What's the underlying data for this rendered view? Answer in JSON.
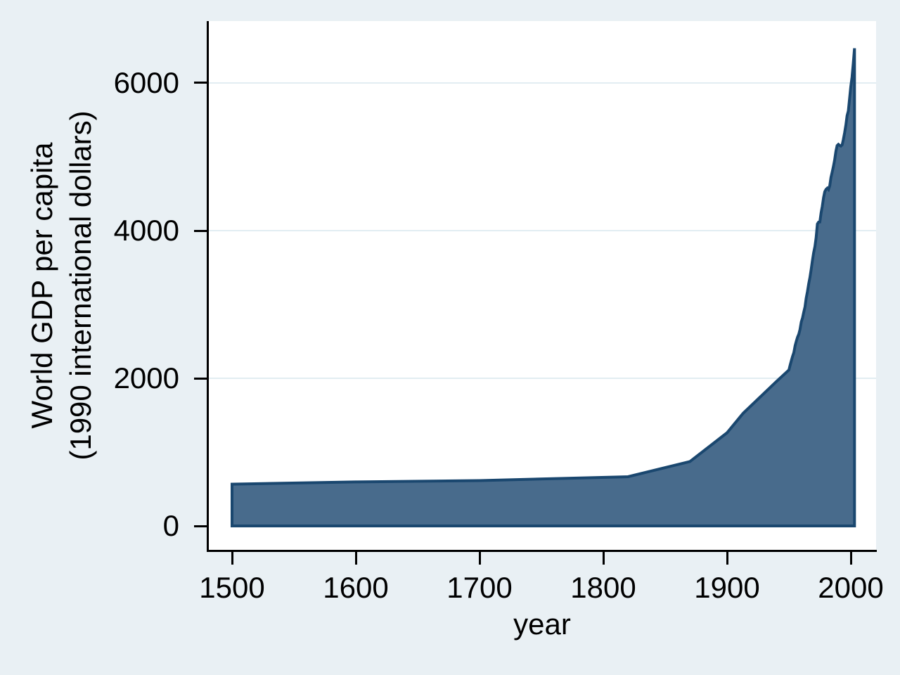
{
  "chart_data": {
    "type": "area",
    "title": "",
    "xlabel": "year",
    "ylabel_lines": [
      "World GDP per capita",
      "(1990 international dollars)"
    ],
    "x_ticks": [
      1500,
      1600,
      1700,
      1800,
      1900,
      2000
    ],
    "y_ticks": [
      0,
      2000,
      4000,
      6000
    ],
    "xlim": [
      1481.25,
      2020.45
    ],
    "ylim": [
      -333,
      6838
    ],
    "grid": "horizontal",
    "legend": "none",
    "series": [
      {
        "name": "World GDP per capita (1990 international dollars)",
        "baseline": 0,
        "points": [
          [
            1500,
            566
          ],
          [
            1600,
            596
          ],
          [
            1700,
            615
          ],
          [
            1820,
            667
          ],
          [
            1870,
            873
          ],
          [
            1900,
            1262
          ],
          [
            1913,
            1526
          ],
          [
            1940,
            1958
          ],
          [
            1950,
            2113
          ],
          [
            1951,
            2180
          ],
          [
            1952,
            2240
          ],
          [
            1953,
            2300
          ],
          [
            1954,
            2348
          ],
          [
            1955,
            2440
          ],
          [
            1956,
            2505
          ],
          [
            1957,
            2558
          ],
          [
            1958,
            2598
          ],
          [
            1959,
            2662
          ],
          [
            1960,
            2764
          ],
          [
            1961,
            2818
          ],
          [
            1962,
            2894
          ],
          [
            1963,
            2969
          ],
          [
            1964,
            3087
          ],
          [
            1965,
            3175
          ],
          [
            1966,
            3283
          ],
          [
            1967,
            3365
          ],
          [
            1968,
            3477
          ],
          [
            1969,
            3592
          ],
          [
            1970,
            3702
          ],
          [
            1971,
            3785
          ],
          [
            1972,
            3905
          ],
          [
            1973,
            4091
          ],
          [
            1974,
            4115
          ],
          [
            1975,
            4117
          ],
          [
            1976,
            4242
          ],
          [
            1977,
            4331
          ],
          [
            1978,
            4449
          ],
          [
            1979,
            4527
          ],
          [
            1980,
            4560
          ],
          [
            1981,
            4575
          ],
          [
            1982,
            4557
          ],
          [
            1983,
            4608
          ],
          [
            1984,
            4720
          ],
          [
            1985,
            4794
          ],
          [
            1986,
            4874
          ],
          [
            1987,
            4961
          ],
          [
            1988,
            5077
          ],
          [
            1989,
            5152
          ],
          [
            1990,
            5169
          ],
          [
            1991,
            5154
          ],
          [
            1992,
            5146
          ],
          [
            1993,
            5161
          ],
          [
            1994,
            5233
          ],
          [
            1995,
            5324
          ],
          [
            1996,
            5429
          ],
          [
            1997,
            5554
          ],
          [
            1998,
            5620
          ],
          [
            1999,
            5780
          ],
          [
            2000,
            5950
          ],
          [
            2001,
            6080
          ],
          [
            2002,
            6260
          ],
          [
            2003,
            6470
          ]
        ]
      }
    ]
  },
  "style": {
    "figure_bg": "#e9f0f4",
    "plot_bg": "#ffffff",
    "grid_color": "#e2edf2",
    "area_fill": "#486b8c",
    "area_stroke": "#1a476f",
    "axis_color": "#000000",
    "text_color": "#000000"
  }
}
